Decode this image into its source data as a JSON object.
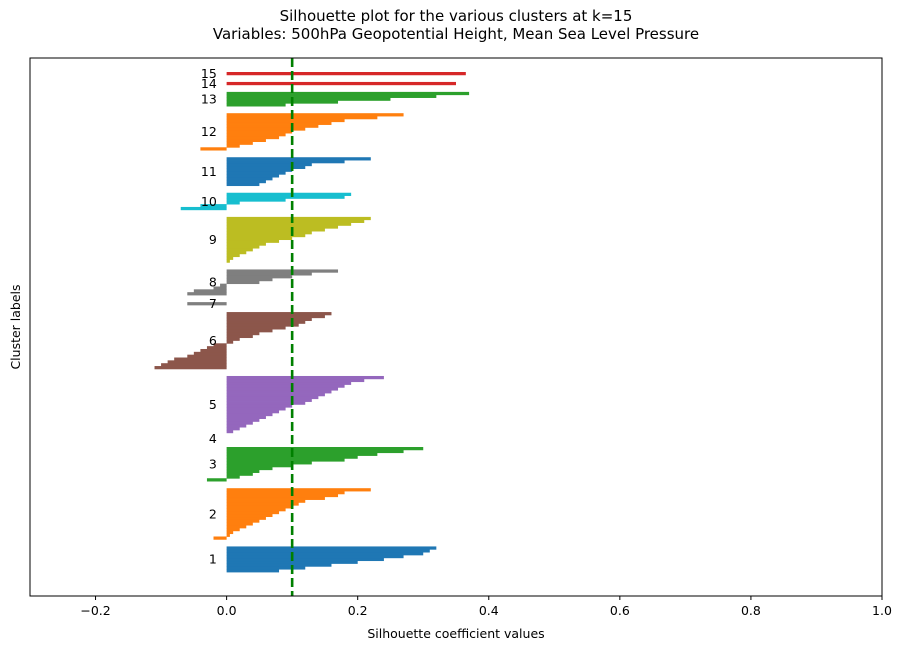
{
  "chart_data": {
    "type": "bar",
    "title_lines": [
      "Silhouette plot for the various clusters at k=15",
      "Variables: 500hPa Geopotential Height, Mean Sea Level Pressure"
    ],
    "xlabel": "Silhouette coefficient values",
    "ylabel": "Cluster labels",
    "xlim": [
      -0.3,
      1.0
    ],
    "xticks": [
      -0.2,
      0.0,
      0.2,
      0.4,
      0.6,
      0.8,
      1.0
    ],
    "xtick_labels": [
      "−0.2",
      "0.0",
      "0.2",
      "0.4",
      "0.6",
      "0.8",
      "1.0"
    ],
    "average_silhouette": 0.1,
    "grid": false,
    "legend": "none",
    "clusters": [
      {
        "label": "1",
        "color": "#1f77b4",
        "values": [
          0.32,
          0.31,
          0.3,
          0.27,
          0.24,
          0.2,
          0.16,
          0.12,
          0.08
        ]
      },
      {
        "label": "2",
        "color": "#ff7f0e",
        "values": [
          0.22,
          0.18,
          0.17,
          0.15,
          0.12,
          0.11,
          0.1,
          0.09,
          0.08,
          0.07,
          0.06,
          0.05,
          0.04,
          0.03,
          0.02,
          0.01,
          0.005,
          -0.02
        ]
      },
      {
        "label": "3",
        "color": "#2ca02c",
        "values": [
          0.3,
          0.27,
          0.23,
          0.2,
          0.18,
          0.13,
          0.1,
          0.07,
          0.05,
          0.04,
          0.02,
          -0.03
        ]
      },
      {
        "label": "4",
        "color": "#d62728",
        "values": []
      },
      {
        "label": "5",
        "color": "#9467bd",
        "values": [
          0.24,
          0.21,
          0.19,
          0.18,
          0.17,
          0.16,
          0.15,
          0.14,
          0.13,
          0.12,
          0.1,
          0.09,
          0.08,
          0.07,
          0.06,
          0.05,
          0.04,
          0.03,
          0.02,
          0.01
        ]
      },
      {
        "label": "6",
        "color": "#8c564b",
        "values": [
          0.16,
          0.15,
          0.13,
          0.12,
          0.11,
          0.09,
          0.07,
          0.05,
          0.04,
          0.02,
          0.01,
          -0.02,
          -0.03,
          -0.04,
          -0.05,
          -0.06,
          -0.08,
          -0.09,
          -0.1,
          -0.11
        ]
      },
      {
        "label": "7",
        "color": "#7f7f7f",
        "values": [
          -0.06
        ]
      },
      {
        "label": "8",
        "color": "#7f7f7f",
        "values": [
          0.17,
          0.13,
          0.1,
          0.07,
          0.05,
          -0.01,
          -0.02,
          -0.05,
          -0.06
        ]
      },
      {
        "label": "9",
        "color": "#bcbd22",
        "values": [
          0.22,
          0.21,
          0.19,
          0.17,
          0.15,
          0.13,
          0.12,
          0.1,
          0.08,
          0.06,
          0.05,
          0.04,
          0.03,
          0.02,
          0.01,
          0.005
        ]
      },
      {
        "label": "10",
        "color": "#17becf",
        "values": [
          0.19,
          0.18,
          0.09,
          0.02,
          -0.04,
          -0.07
        ]
      },
      {
        "label": "11",
        "color": "#1f77b4",
        "values": [
          0.22,
          0.18,
          0.13,
          0.12,
          0.1,
          0.09,
          0.08,
          0.07,
          0.06,
          0.05
        ]
      },
      {
        "label": "12",
        "color": "#ff7f0e",
        "values": [
          0.27,
          0.23,
          0.18,
          0.16,
          0.14,
          0.12,
          0.1,
          0.09,
          0.08,
          0.06,
          0.04,
          0.02,
          -0.04
        ]
      },
      {
        "label": "13",
        "color": "#2ca02c",
        "values": [
          0.37,
          0.32,
          0.25,
          0.17,
          0.09
        ]
      },
      {
        "label": "14",
        "color": "#d62728",
        "values": [
          0.35
        ]
      },
      {
        "label": "15",
        "color": "#d62728",
        "values": [
          0.365
        ]
      }
    ],
    "average_line_color": "#008000"
  }
}
